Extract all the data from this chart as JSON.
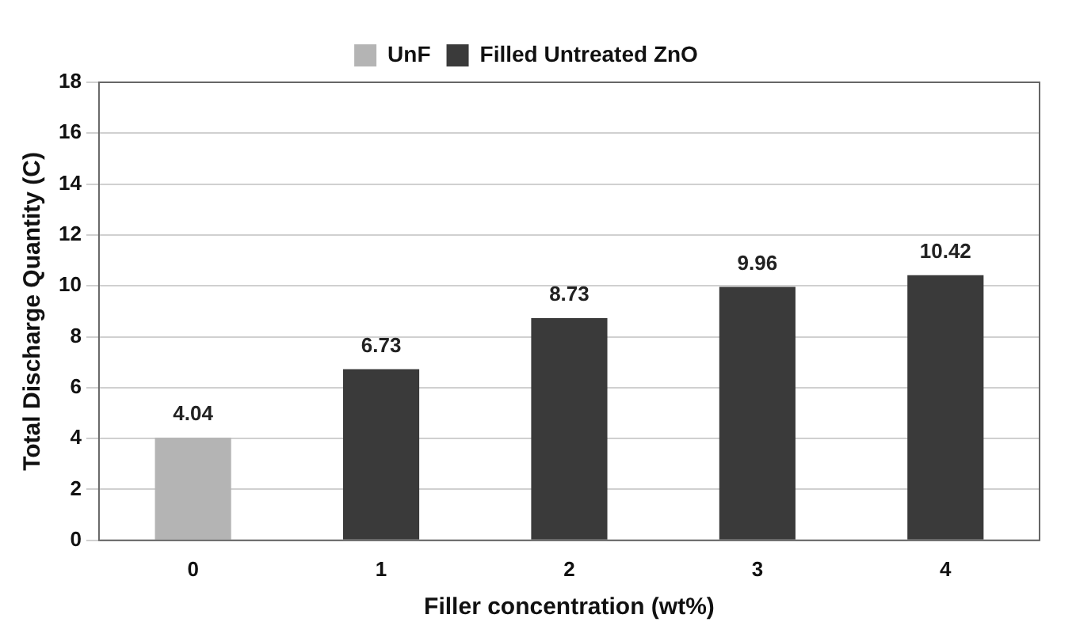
{
  "chart_data": {
    "type": "bar",
    "xlabel": "Filler concentration (wt%)",
    "ylabel": "Total Discharge Quantity (C)",
    "categories": [
      "0",
      "1",
      "2",
      "3",
      "4"
    ],
    "series": [
      {
        "name": "UnF",
        "color": "#b4b4b4",
        "values": [
          4.04,
          null,
          null,
          null,
          null
        ]
      },
      {
        "name": "Filled Untreated ZnO",
        "color": "#3a3a3a",
        "values": [
          null,
          6.73,
          8.73,
          9.96,
          10.42
        ]
      }
    ],
    "ylim": [
      0,
      18
    ],
    "yticks": [
      0,
      2,
      4,
      6,
      8,
      10,
      12,
      14,
      16,
      18
    ],
    "grid": "y",
    "legend": "top",
    "data_labels": true
  }
}
